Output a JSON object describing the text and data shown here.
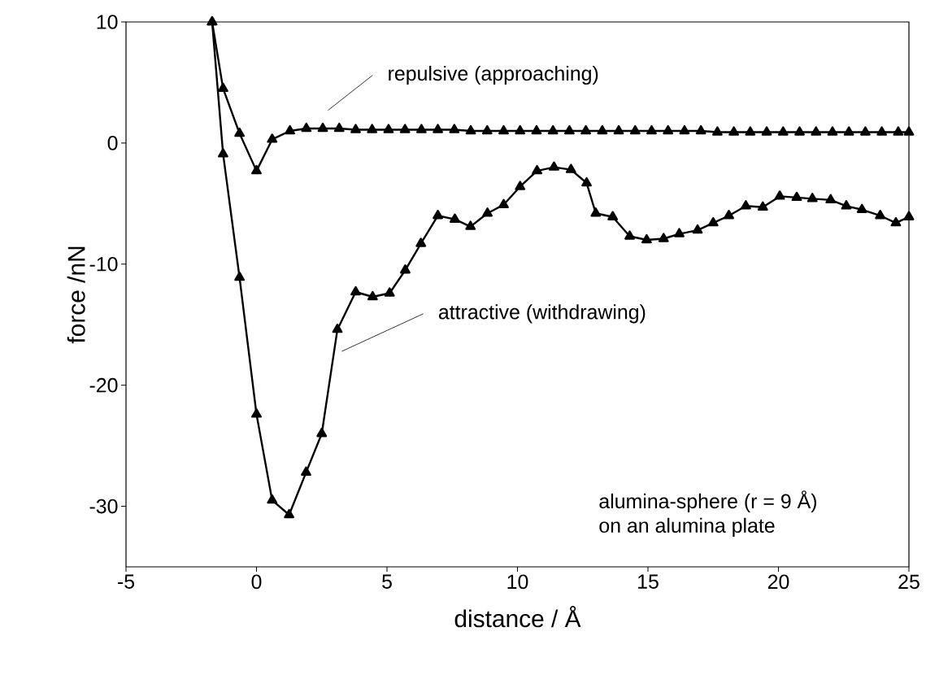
{
  "chart_data": {
    "type": "line",
    "xlabel": "distance / Å",
    "ylabel": "force /nN",
    "xlim": [
      -5,
      25
    ],
    "ylim": [
      -35,
      10
    ],
    "xticks": [
      -5,
      0,
      5,
      10,
      15,
      20,
      25
    ],
    "yticks": [
      -30,
      -20,
      -10,
      0,
      10
    ],
    "grid": false,
    "marker": "triangle",
    "line_style": "solid",
    "series": [
      {
        "color": "#000000",
        "x": [
          -1.7,
          -1.28,
          -0.65,
          0,
          0.6,
          1.28,
          1.91,
          2.54,
          3.17,
          3.8,
          4.43,
          5.06,
          5.69,
          6.32,
          6.95,
          7.58,
          8.21,
          8.84,
          9.47,
          10.1,
          10.73,
          11.36,
          11.99,
          12.62,
          13.25,
          13.88,
          14.51,
          15.14,
          15.77,
          16.4,
          17.03,
          17.66,
          18.29,
          18.92,
          19.55,
          20.18,
          20.81,
          21.44,
          22.07,
          22.7,
          23.33,
          23.96,
          24.59,
          25
        ],
        "values": [
          10,
          4.5,
          0.8,
          -2.3,
          0.3,
          1.0,
          1.2,
          1.2,
          1.2,
          1.1,
          1.1,
          1.1,
          1.1,
          1.1,
          1.1,
          1.1,
          1.0,
          1.0,
          1.0,
          1.0,
          1.0,
          1.0,
          1.0,
          1.0,
          1.0,
          1.0,
          1.0,
          1.0,
          1.0,
          1.0,
          1.0,
          0.9,
          0.9,
          0.9,
          0.9,
          0.9,
          0.9,
          0.9,
          0.9,
          0.9,
          0.9,
          0.9,
          0.9,
          0.9
        ]
      },
      {
        "color": "#000000",
        "x": [
          -1.7,
          -1.28,
          -0.65,
          0,
          0.6,
          1.25,
          1.9,
          2.5,
          3.1,
          3.8,
          4.45,
          5.1,
          5.7,
          6.3,
          6.95,
          7.6,
          8.2,
          8.85,
          9.47,
          10.1,
          10.75,
          11.4,
          12.05,
          12.65,
          13.0,
          13.65,
          14.3,
          14.95,
          15.6,
          16.2,
          16.9,
          17.5,
          18.1,
          18.75,
          19.4,
          20.05,
          20.7,
          21.3,
          22.0,
          22.6,
          23.2,
          23.9,
          24.5,
          25
        ],
        "values": [
          10,
          -0.9,
          -11.1,
          -22.4,
          -29.5,
          -30.7,
          -27.2,
          -24.0,
          -15.4,
          -12.3,
          -12.7,
          -12.4,
          -10.5,
          -8.3,
          -6.0,
          -6.3,
          -6.9,
          -5.8,
          -5.1,
          -3.6,
          -2.3,
          -2.0,
          -2.2,
          -3.3,
          -5.8,
          -6.1,
          -7.7,
          -8.0,
          -7.9,
          -7.5,
          -7.2,
          -6.6,
          -6.0,
          -5.2,
          -5.3,
          -4.4,
          -4.5,
          -4.6,
          -4.7,
          -5.2,
          -5.5,
          -6.0,
          -6.6,
          -6.1
        ]
      }
    ],
    "annotations": [
      "repulsive (approaching)",
      "attractive (withdrawing)",
      "alumina-sphere (r = 9 Å)",
      "on an alumina plate"
    ]
  }
}
